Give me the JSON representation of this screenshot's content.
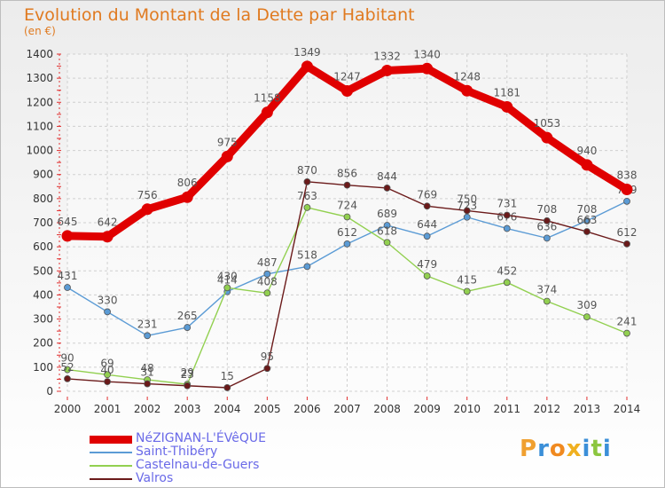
{
  "title": "Evolution du Montant de la Dette par Habitant",
  "unit": "(en €)",
  "logo": "Proxiti",
  "chart_data": {
    "type": "line",
    "title": "Evolution du Montant de la Dette par Habitant",
    "ylabel": "(en €)",
    "x": [
      2000,
      2001,
      2002,
      2003,
      2004,
      2005,
      2006,
      2007,
      2008,
      2009,
      2010,
      2011,
      2012,
      2013,
      2014
    ],
    "ylim": [
      0,
      1400
    ],
    "yticks": [
      0,
      100,
      200,
      300,
      400,
      500,
      600,
      700,
      800,
      900,
      1000,
      1100,
      1200,
      1300,
      1400
    ],
    "grid": true,
    "legend": "bottom-left",
    "series": [
      {
        "name": "NéZIGNAN-L'ÉVêQUE",
        "color": "#e00000",
        "bold": true,
        "values": [
          645,
          642,
          756,
          806,
          975,
          1158,
          1349,
          1247,
          1332,
          1340,
          1248,
          1181,
          1053,
          940,
          838
        ]
      },
      {
        "name": "Saint-Thibéry",
        "color": "#5b9bd5",
        "values": [
          431,
          330,
          231,
          265,
          414,
          487,
          518,
          612,
          689,
          644,
          723,
          676,
          636,
          708,
          789
        ]
      },
      {
        "name": "Castelnau-de-Guers",
        "color": "#92d050",
        "values": [
          90,
          69,
          48,
          29,
          430,
          408,
          763,
          724,
          618,
          479,
          415,
          452,
          374,
          309,
          241
        ]
      },
      {
        "name": "Valros",
        "color": "#6b1a1a",
        "values": [
          52,
          40,
          31,
          23,
          15,
          95,
          870,
          856,
          844,
          769,
          750,
          731,
          708,
          663,
          612
        ]
      }
    ]
  }
}
